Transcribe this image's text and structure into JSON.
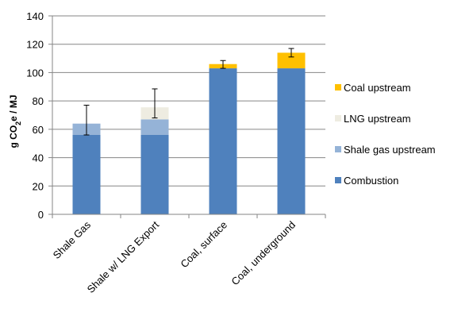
{
  "chart_data": {
    "type": "bar",
    "stacked": true,
    "categories": [
      "Shale Gas",
      "Shale w/ LNG Export",
      "Coal, surface",
      "Coal, underground"
    ],
    "series": [
      {
        "name": "Combustion",
        "color": "#4F81BD",
        "values": [
          56,
          56,
          103,
          103
        ]
      },
      {
        "name": "Shale gas upstream",
        "color": "#95B3D7",
        "values": [
          8,
          11,
          0,
          0
        ]
      },
      {
        "name": "LNG upstream",
        "color": "#EEECE1",
        "values": [
          0,
          8.5,
          0,
          0
        ]
      },
      {
        "name": "Coal upstream",
        "color": "#FFC000",
        "values": [
          0,
          0,
          3,
          11
        ]
      }
    ],
    "error_bars": [
      {
        "low": 56,
        "high": 77
      },
      {
        "low": 68,
        "high": 88.5
      },
      {
        "low": 103,
        "high": 108.5
      },
      {
        "low": 111,
        "high": 117
      }
    ],
    "ylabel_parts": {
      "pre": "g CO",
      "sub": "2",
      "post": "e / MJ"
    },
    "ylim": [
      0,
      140
    ],
    "yticks": [
      "0",
      "20",
      "40",
      "60",
      "80",
      "100",
      "120",
      "140"
    ],
    "grid": true,
    "legend_position": "right",
    "legend_order": [
      "Coal upstream",
      "LNG upstream",
      "Shale gas upstream",
      "Combustion"
    ]
  }
}
